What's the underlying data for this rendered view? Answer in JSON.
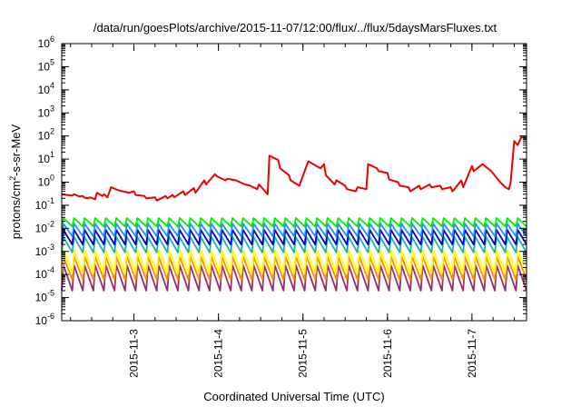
{
  "chart_data": {
    "type": "line",
    "title": "/data/run/goesPlots/archive/2015-11-07/12:00/flux/../flux/5daysMarsFluxes.txt",
    "xlabel": "Coordinated Universal Time (UTC)",
    "ylabel": {
      "prefix": "protons/cm",
      "sup": "2",
      "suffix": "-s-sr-MeV"
    },
    "xlim": [
      "2015-11-02T03:30",
      "2015-11-07T15:30"
    ],
    "ylim": [
      1e-06,
      1000000.0
    ],
    "y_scale": "log",
    "x_ticks": [
      {
        "label": "2015-11-3",
        "value": "2015-11-03T00:00"
      },
      {
        "label": "2015-11-4",
        "value": "2015-11-04T00:00"
      },
      {
        "label": "2015-11-5",
        "value": "2015-11-05T00:00"
      },
      {
        "label": "2015-11-6",
        "value": "2015-11-06T00:00"
      },
      {
        "label": "2015-11-7",
        "value": "2015-11-07T00:00"
      }
    ],
    "y_ticks": [
      {
        "base": "10",
        "exp": "-6",
        "value": 1e-06
      },
      {
        "base": "10",
        "exp": "-5",
        "value": 1e-05
      },
      {
        "base": "10",
        "exp": "-4",
        "value": 0.0001
      },
      {
        "base": "10",
        "exp": "-3",
        "value": 0.001
      },
      {
        "base": "10",
        "exp": "-2",
        "value": 0.01
      },
      {
        "base": "10",
        "exp": "-1",
        "value": 0.1
      },
      {
        "base": "10",
        "exp": "0",
        "value": 1
      },
      {
        "base": "10",
        "exp": "1",
        "value": 10
      },
      {
        "base": "10",
        "exp": "2",
        "value": 100
      },
      {
        "base": "10",
        "exp": "3",
        "value": 1000
      },
      {
        "base": "10",
        "exp": "4",
        "value": 10000
      },
      {
        "base": "10",
        "exp": "5",
        "value": 100000
      },
      {
        "base": "10",
        "exp": "6",
        "value": 1000000
      }
    ],
    "grid": false,
    "legend": "none",
    "series": [
      {
        "color": "#ee0000",
        "x": [
          "2015-11-02T03:30",
          "2015-11-02T05:00",
          "2015-11-02T06:30",
          "2015-11-02T07:00",
          "2015-11-02T08:30",
          "2015-11-02T09:30",
          "2015-11-02T10:00",
          "2015-11-02T11:00",
          "2015-11-02T11:30",
          "2015-11-02T13:00",
          "2015-11-02T13:30",
          "2015-11-02T15:00",
          "2015-11-02T15:30",
          "2015-11-02T16:30",
          "2015-11-02T17:30",
          "2015-11-02T19:30",
          "2015-11-02T22:30",
          "2015-11-03T00:00",
          "2015-11-03T00:30",
          "2015-11-03T03:00",
          "2015-11-03T03:30",
          "2015-11-03T06:00",
          "2015-11-03T06:30",
          "2015-11-03T09:00",
          "2015-11-03T09:30",
          "2015-11-03T11:00",
          "2015-11-03T11:30",
          "2015-11-03T14:00",
          "2015-11-03T14:30",
          "2015-11-03T17:00",
          "2015-11-03T17:30",
          "2015-11-03T20:00",
          "2015-11-03T20:30",
          "2015-11-03T23:00",
          "2015-11-03T23:30",
          "2015-11-04T02:00",
          "2015-11-04T02:30",
          "2015-11-04T05:00",
          "2015-11-04T07:30",
          "2015-11-04T09:00",
          "2015-11-04T11:00",
          "2015-11-04T11:30",
          "2015-11-04T14:00",
          "2015-11-04T14:30",
          "2015-11-04T17:00",
          "2015-11-04T17:30",
          "2015-11-04T20:00",
          "2015-11-04T20:30",
          "2015-11-04T23:00",
          "2015-11-05T01:30",
          "2015-11-05T05:00",
          "2015-11-05T06:00",
          "2015-11-05T06:30",
          "2015-11-05T09:00",
          "2015-11-05T09:30",
          "2015-11-05T12:00",
          "2015-11-05T12:30",
          "2015-11-05T15:00",
          "2015-11-05T15:30",
          "2015-11-05T18:00",
          "2015-11-05T18:30",
          "2015-11-05T21:00",
          "2015-11-05T21:30",
          "2015-11-06T00:00",
          "2015-11-06T00:30",
          "2015-11-06T03:00",
          "2015-11-06T03:30",
          "2015-11-06T06:00",
          "2015-11-06T06:30",
          "2015-11-06T09:00",
          "2015-11-06T09:30",
          "2015-11-06T12:00",
          "2015-11-06T12:30",
          "2015-11-06T15:00",
          "2015-11-06T15:30",
          "2015-11-06T18:00",
          "2015-11-06T18:30",
          "2015-11-06T21:00",
          "2015-11-06T21:30",
          "2015-11-07T00:00",
          "2015-11-07T00:30",
          "2015-11-07T03:00",
          "2015-11-07T05:30",
          "2015-11-07T08:00",
          "2015-11-07T09:30",
          "2015-11-07T10:30",
          "2015-11-07T11:00",
          "2015-11-07T12:00",
          "2015-11-07T13:00",
          "2015-11-07T14:00",
          "2015-11-07T15:00",
          "2015-11-07T15:30"
        ],
        "values": [
          0.3,
          0.28,
          0.26,
          0.3,
          0.24,
          0.25,
          0.21,
          0.2,
          0.22,
          0.18,
          0.35,
          0.25,
          0.3,
          0.22,
          0.6,
          0.45,
          0.35,
          0.4,
          0.28,
          0.25,
          0.2,
          0.22,
          0.16,
          0.25,
          0.2,
          0.28,
          0.22,
          0.4,
          0.28,
          0.55,
          0.35,
          1.2,
          0.8,
          2.2,
          1.8,
          1.2,
          1.4,
          1.2,
          0.8,
          0.7,
          0.5,
          0.8,
          0.3,
          14,
          9,
          4,
          2,
          1.2,
          0.7,
          8,
          4,
          6,
          2,
          0.8,
          1.2,
          0.7,
          0.5,
          0.4,
          0.6,
          0.5,
          6,
          4,
          3,
          2.5,
          1.3,
          1.0,
          0.7,
          0.6,
          0.4,
          0.7,
          0.5,
          0.8,
          0.6,
          0.7,
          0.5,
          0.6,
          0.4,
          1.2,
          0.6,
          5,
          3,
          6,
          3,
          1.0,
          0.6,
          0.5,
          1.0,
          60,
          40,
          90,
          80,
          85
        ]
      },
      {
        "color": "#00ee00",
        "x": [],
        "values": [],
        "_pattern": {
          "base": 0.012,
          "peak": 0.028
        }
      },
      {
        "color": "#1e90ff",
        "x": [],
        "values": [],
        "_pattern": {
          "base": 0.0045,
          "peak": 0.016
        }
      },
      {
        "color": "#0000cd",
        "x": [],
        "values": [],
        "_pattern": {
          "base": 0.002,
          "peak": 0.0085
        }
      },
      {
        "color": "#20b2aa",
        "x": [],
        "values": [],
        "_pattern": {
          "base": 0.0009,
          "peak": 0.0042
        }
      },
      {
        "color": "#ffff00",
        "x": [],
        "values": [],
        "_pattern": {
          "base": 0.00012,
          "peak": 0.0011
        }
      },
      {
        "color": "#ff8c00",
        "x": [],
        "values": [],
        "_pattern": {
          "base": 6e-05,
          "peak": 0.0006
        }
      },
      {
        "color": "#9b2d6f",
        "x": [],
        "values": [],
        "_pattern": {
          "base": 2e-05,
          "peak": 0.00025
        }
      }
    ]
  }
}
